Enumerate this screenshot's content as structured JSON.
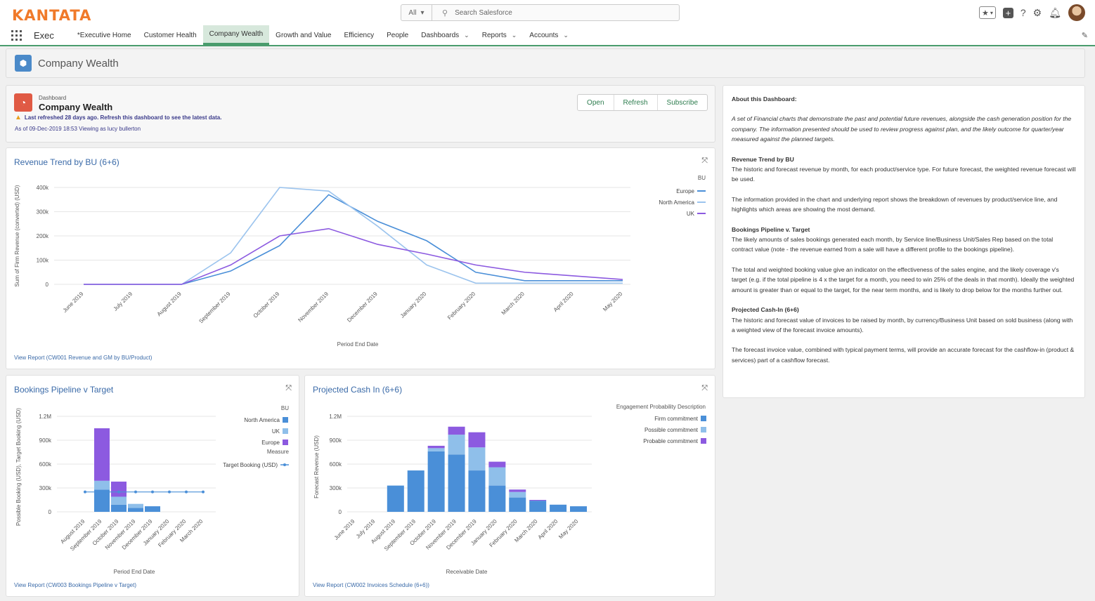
{
  "brand": {
    "logo": "KANTATA",
    "accent": "#f07a2a"
  },
  "search": {
    "scope": "All",
    "placeholder": "Search Salesforce"
  },
  "nav": {
    "app_name": "Exec",
    "items": [
      {
        "label": "*Executive Home"
      },
      {
        "label": "Customer Health"
      },
      {
        "label": "Company Wealth"
      },
      {
        "label": "Growth and Value"
      },
      {
        "label": "Efficiency"
      },
      {
        "label": "People"
      },
      {
        "label": "Dashboards"
      },
      {
        "label": "Reports"
      },
      {
        "label": "Accounts"
      }
    ],
    "active": "Company Wealth"
  },
  "page": {
    "title": "Company Wealth"
  },
  "dashboard": {
    "type_label": "Dashboard",
    "name": "Company Wealth",
    "warning": "Last refreshed 28 days ago. Refresh this dashboard to see the latest data.",
    "as_of": "As of 09-Dec-2019 18:53 Viewing as lucy bullerton",
    "buttons": {
      "open": "Open",
      "refresh": "Refresh",
      "subscribe": "Subscribe"
    }
  },
  "revenue_card": {
    "title": "Revenue Trend by BU (6+6)",
    "view_report": "View Report (CW001 Revenue and GM by BU/Product)"
  },
  "bookings_card": {
    "title": "Bookings Pipeline v Target",
    "view_report": "View Report (CW003 Bookings Pipeline v Target)"
  },
  "cash_card": {
    "title": "Projected Cash In (6+6)",
    "view_report": "View Report (CW002 Invoices Schedule (6+6))"
  },
  "chart_data": [
    {
      "type": "line",
      "title": "Revenue Trend by BU (6+6)",
      "xlabel": "Period End Date",
      "ylabel": "Sum of Firm Revenue (converted) (USD)",
      "ylim": [
        0,
        400000
      ],
      "yticks": [
        "0",
        "100k",
        "200k",
        "300k",
        "400k"
      ],
      "legend_title": "BU",
      "legend_position": "top-right",
      "categories": [
        "June 2019",
        "July 2019",
        "August 2019",
        "September 2019",
        "October 2019",
        "November 2019",
        "December 2019",
        "January 2020",
        "February 2020",
        "March 2020",
        "April 2020",
        "May 2020"
      ],
      "series": [
        {
          "name": "Europe",
          "color": "#4a8fd8",
          "values": [
            0,
            0,
            0,
            55000,
            160000,
            370000,
            260000,
            180000,
            50000,
            15000,
            15000,
            15000
          ]
        },
        {
          "name": "North America",
          "color": "#9cc4ee",
          "values": [
            0,
            0,
            0,
            130000,
            400000,
            385000,
            240000,
            80000,
            5000,
            5000,
            5000,
            5000
          ]
        },
        {
          "name": "UK",
          "color": "#8c5ae0",
          "values": [
            0,
            0,
            0,
            80000,
            200000,
            230000,
            165000,
            125000,
            80000,
            50000,
            35000,
            20000
          ]
        }
      ]
    },
    {
      "type": "bar",
      "stacked": true,
      "title": "Bookings Pipeline v Target",
      "xlabel": "Period End Date",
      "ylabel": "Possible Booking (USD), Target Booking (USD)",
      "ylim": [
        0,
        1200000
      ],
      "yticks": [
        "0",
        "300k",
        "600k",
        "900k",
        "1.2M"
      ],
      "legend_title": "BU",
      "legend_measure_title": "Measure",
      "legend_position": "top-right",
      "categories": [
        "August 2019",
        "September 2019",
        "October 2019",
        "November 2019",
        "December 2019",
        "January 2020",
        "February 2020",
        "March 2020"
      ],
      "series": [
        {
          "name": "North America",
          "color": "#4a8fd8",
          "values": [
            0,
            280000,
            90000,
            50000,
            70000,
            0,
            0,
            0
          ]
        },
        {
          "name": "UK",
          "color": "#8fbfea",
          "values": [
            0,
            110000,
            100000,
            50000,
            0,
            0,
            0,
            0
          ]
        },
        {
          "name": "Europe",
          "color": "#8c5ae0",
          "values": [
            0,
            660000,
            190000,
            0,
            0,
            0,
            0,
            0
          ]
        }
      ],
      "target": {
        "name": "Target Booking (USD)",
        "color": "#4a8fd8",
        "values": [
          250000,
          250000,
          250000,
          250000,
          250000,
          250000,
          250000,
          250000
        ]
      }
    },
    {
      "type": "bar",
      "stacked": true,
      "title": "Projected Cash In (6+6)",
      "xlabel": "Receivable Date",
      "ylabel": "Forecast Revenue (USD)",
      "ylim": [
        0,
        1200000
      ],
      "yticks": [
        "0",
        "300k",
        "600k",
        "900k",
        "1.2M"
      ],
      "legend_title": "Engagement Probability Description",
      "legend_position": "top-right",
      "categories": [
        "June 2019",
        "July 2019",
        "August 2019",
        "September 2019",
        "October 2019",
        "November 2019",
        "December 2019",
        "January 2020",
        "February 2020",
        "March 2020",
        "April 2020",
        "May 2020"
      ],
      "series": [
        {
          "name": "Firm commitment",
          "color": "#4a8fd8",
          "values": [
            0,
            0,
            330000,
            520000,
            760000,
            720000,
            520000,
            330000,
            180000,
            140000,
            90000,
            70000
          ]
        },
        {
          "name": "Possible commitment",
          "color": "#8fbfea",
          "values": [
            0,
            0,
            0,
            0,
            40000,
            250000,
            290000,
            230000,
            70000,
            0,
            0,
            0
          ]
        },
        {
          "name": "Probable commitment",
          "color": "#8c5ae0",
          "values": [
            0,
            0,
            0,
            0,
            30000,
            100000,
            190000,
            70000,
            30000,
            10000,
            0,
            0
          ]
        }
      ]
    }
  ],
  "about": {
    "heading": "About this Dashboard:",
    "intro": "A set of Financial charts that demonstrate the past and potential future revenues, alongside the cash generation position for the company. The information presented should be used to review progress against plan, and the likely outcome for quarter/year measured against the planned targets.",
    "sections": [
      {
        "title": "Revenue Trend by BU",
        "paragraphs": [
          "The historic and forecast revenue by month, for each product/service type. For future forecast, the weighted revenue forecast will be used.",
          "The information provided in the chart and underlying report shows the breakdown of revenues by product/service line, and highlights which areas are showing the most demand."
        ]
      },
      {
        "title": "Bookings Pipeline v. Target",
        "paragraphs": [
          "The likely amounts of sales bookings generated each month, by Service line/Business Unit/Sales Rep based on the total contract value (note - the revenue earned from a sale will have a different profile to the bookings pipeline).",
          "The total and weighted booking value give an indicator on the effectiveness of the sales engine, and the likely coverage v's target (e.g. if the total pipeline is 4 x the target for a month, you need to win 25% of the deals in that month). Ideally the weighted amount is greater than or equal to the target, for the near term months, and is likely to drop below for the months further out."
        ]
      },
      {
        "title": "Projected Cash-In (6+6)",
        "paragraphs": [
          "The historic and forecast value of invoices to be raised by month, by currency/Business Unit based on sold business (along with a weighted view of the forecast invoice amounts).",
          "The forecast invoice value, combined with typical payment terms, will provide an accurate forecast for the cashflow-in (product & services) part of a cashflow forecast."
        ]
      }
    ]
  }
}
